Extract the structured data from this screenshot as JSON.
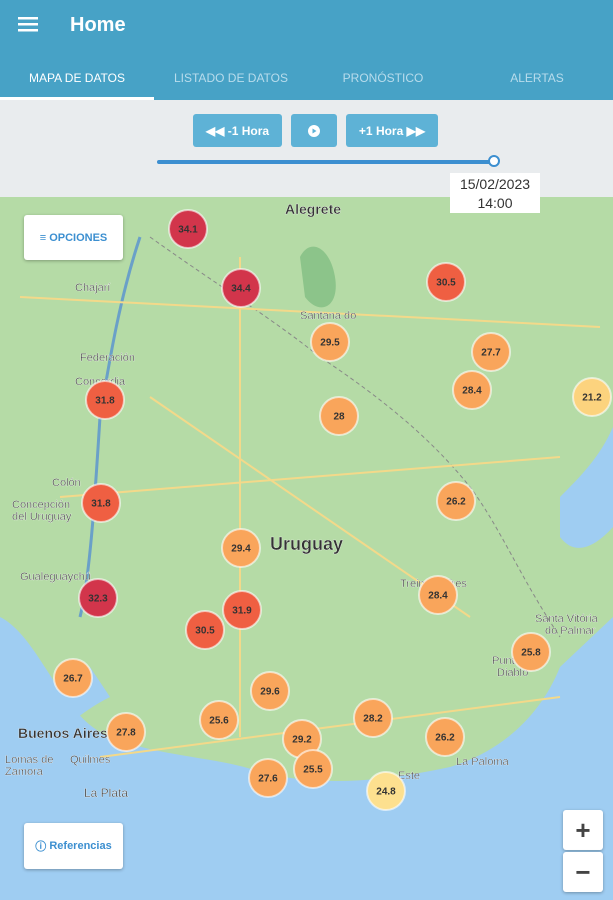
{
  "header": {
    "title": "Home"
  },
  "tabs": [
    "MAPA DE DATOS",
    "LISTADO DE DATOS",
    "PRONÓSTICO",
    "ALERTAS"
  ],
  "controls": {
    "back": "-1 Hora",
    "forward": "+1 Hora",
    "date": "15/02/2023",
    "time": "14:00"
  },
  "map": {
    "options": "OPCIONES",
    "references": "Referencias",
    "zoom_in": "+",
    "zoom_out": "−",
    "places": [
      "Alegrete",
      "Uruguay",
      "Chajarí",
      "Federación",
      "Concordia",
      "Colón",
      "Concepción",
      "del Uruguay",
      "Gualeguaychú",
      "Buenos Aires",
      "Quilmes",
      "Lomas de",
      "Zamora",
      "La Plata",
      "Santana do",
      "Treinta y Tres",
      "Santa Vitória",
      "do Palmar",
      "Punta del",
      "Diablo",
      "La Paloma",
      "Este"
    ],
    "markers": [
      {
        "label": "34.1",
        "color": "#d2354b"
      },
      {
        "label": "34.4",
        "color": "#d2354b"
      },
      {
        "label": "30.5",
        "color": "#ef5f42"
      },
      {
        "label": "29.5",
        "color": "#f9a55b"
      },
      {
        "label": "27.7",
        "color": "#f9a55b"
      },
      {
        "label": "28.4",
        "color": "#f9a55b"
      },
      {
        "label": "21.2",
        "color": "#fcd37e"
      },
      {
        "label": "31.8",
        "color": "#ef5f42"
      },
      {
        "label": "28",
        "color": "#f9a55b"
      },
      {
        "label": "31.8",
        "color": "#ef5f42"
      },
      {
        "label": "26.2",
        "color": "#f9a55b"
      },
      {
        "label": "29.4",
        "color": "#f9a55b"
      },
      {
        "label": "28.4",
        "color": "#f9a55b"
      },
      {
        "label": "32.3",
        "color": "#d2354b"
      },
      {
        "label": "31.9",
        "color": "#ef5f42"
      },
      {
        "label": "30.5",
        "color": "#ef5f42"
      },
      {
        "label": "25.8",
        "color": "#f9a55b"
      },
      {
        "label": "26.7",
        "color": "#f9a55b"
      },
      {
        "label": "29.6",
        "color": "#f9a55b"
      },
      {
        "label": "27.8",
        "color": "#f9a55b"
      },
      {
        "label": "25.6",
        "color": "#f9a55b"
      },
      {
        "label": "28.2",
        "color": "#f9a55b"
      },
      {
        "label": "29.2",
        "color": "#f9a55b"
      },
      {
        "label": "26.2",
        "color": "#f9a55b"
      },
      {
        "label": "25.5",
        "color": "#f9a55b"
      },
      {
        "label": "27.6",
        "color": "#f9a55b"
      },
      {
        "label": "24.8",
        "color": "#fde08f"
      }
    ]
  }
}
